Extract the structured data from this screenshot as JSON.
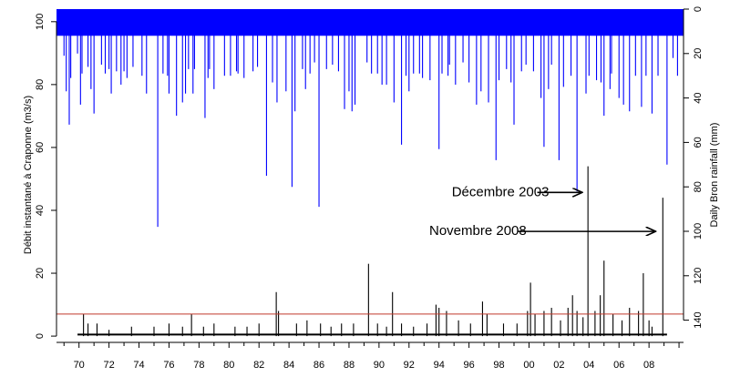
{
  "chart_data": {
    "type": "bar",
    "left_axis": {
      "label": "Débit instantané à Craponne (m3/s)",
      "range": [
        -2,
        104
      ],
      "ticks": [
        0,
        20,
        40,
        60,
        80,
        100
      ]
    },
    "right_axis": {
      "label": "Daily Bron rainfall (mm)",
      "range": [
        0,
        150
      ],
      "reversed": true,
      "ticks": [
        0,
        20,
        40,
        60,
        80,
        100,
        120,
        140
      ]
    },
    "x_axis": {
      "range": [
        1968.5,
        2010.3
      ],
      "tick_years": [
        1970,
        1972,
        1974,
        1976,
        1978,
        1980,
        1982,
        1984,
        1986,
        1988,
        1990,
        1992,
        1994,
        1996,
        1998,
        2000,
        2002,
        2004,
        2006,
        2008
      ],
      "tick_labels": [
        "70",
        "72",
        "74",
        "76",
        "78",
        "80",
        "82",
        "84",
        "86",
        "88",
        "90",
        "92",
        "94",
        "96",
        "98",
        "00",
        "02",
        "04",
        "06",
        "08"
      ]
    },
    "threshold": {
      "value": 7,
      "color": "#c0392b"
    },
    "series": [
      {
        "color": "#0000ff",
        "axis": "right",
        "values": [
          [
            1969.0,
            21
          ],
          [
            1969.15,
            37
          ],
          [
            1969.35,
            52
          ],
          [
            1969.45,
            31
          ],
          [
            1969.9,
            20
          ],
          [
            1970.1,
            43
          ],
          [
            1970.2,
            29
          ],
          [
            1970.6,
            26
          ],
          [
            1970.8,
            36
          ],
          [
            1971.0,
            47
          ],
          [
            1971.5,
            25
          ],
          [
            1971.75,
            29
          ],
          [
            1972.0,
            27
          ],
          [
            1972.15,
            38
          ],
          [
            1972.5,
            28
          ],
          [
            1972.8,
            34
          ],
          [
            1973.0,
            28
          ],
          [
            1973.2,
            31
          ],
          [
            1973.6,
            26
          ],
          [
            1974.2,
            30
          ],
          [
            1974.5,
            38
          ],
          [
            1975.25,
            98
          ],
          [
            1975.6,
            29
          ],
          [
            1975.9,
            30
          ],
          [
            1976.0,
            38
          ],
          [
            1976.5,
            48
          ],
          [
            1976.9,
            42
          ],
          [
            1977.1,
            38
          ],
          [
            1977.3,
            27
          ],
          [
            1977.6,
            38
          ],
          [
            1977.7,
            27
          ],
          [
            1978.4,
            49
          ],
          [
            1978.6,
            31
          ],
          [
            1978.7,
            27
          ],
          [
            1979.0,
            36
          ],
          [
            1979.7,
            30
          ],
          [
            1980.1,
            30
          ],
          [
            1980.5,
            28
          ],
          [
            1980.6,
            29
          ],
          [
            1981.0,
            31
          ],
          [
            1981.6,
            28
          ],
          [
            1981.9,
            26
          ],
          [
            1982.5,
            75
          ],
          [
            1982.9,
            33
          ],
          [
            1983.2,
            42
          ],
          [
            1983.8,
            37
          ],
          [
            1984.2,
            80
          ],
          [
            1984.4,
            46
          ],
          [
            1984.9,
            27
          ],
          [
            1985.1,
            36
          ],
          [
            1985.4,
            29
          ],
          [
            1985.7,
            24
          ],
          [
            1986.0,
            89
          ],
          [
            1986.5,
            27
          ],
          [
            1986.9,
            25
          ],
          [
            1987.3,
            28
          ],
          [
            1987.7,
            45
          ],
          [
            1988.0,
            37
          ],
          [
            1988.2,
            46
          ],
          [
            1988.4,
            43
          ],
          [
            1989.2,
            24
          ],
          [
            1989.5,
            29
          ],
          [
            1989.9,
            29
          ],
          [
            1990.2,
            34
          ],
          [
            1990.5,
            34
          ],
          [
            1991.0,
            42
          ],
          [
            1991.5,
            61
          ],
          [
            1991.8,
            30
          ],
          [
            1992.0,
            37
          ],
          [
            1992.3,
            29
          ],
          [
            1992.7,
            29
          ],
          [
            1992.9,
            31
          ],
          [
            1993.4,
            32
          ],
          [
            1994.0,
            63
          ],
          [
            1994.2,
            29
          ],
          [
            1994.6,
            30
          ],
          [
            1994.7,
            25
          ],
          [
            1995.1,
            34
          ],
          [
            1995.6,
            24
          ],
          [
            1996.0,
            33
          ],
          [
            1996.5,
            43
          ],
          [
            1996.8,
            37
          ],
          [
            1997.3,
            42
          ],
          [
            1997.8,
            68
          ],
          [
            1998.0,
            32
          ],
          [
            1998.5,
            27
          ],
          [
            1998.8,
            33
          ],
          [
            1999.0,
            52
          ],
          [
            1999.5,
            28
          ],
          [
            1999.8,
            25
          ],
          [
            2000.3,
            28
          ],
          [
            2000.8,
            40
          ],
          [
            2001.0,
            62
          ],
          [
            2001.3,
            36
          ],
          [
            2001.5,
            25
          ],
          [
            2002.0,
            68
          ],
          [
            2002.3,
            35
          ],
          [
            2002.8,
            30
          ],
          [
            2003.2,
            82
          ],
          [
            2003.8,
            38
          ],
          [
            2004.0,
            30
          ],
          [
            2004.5,
            32
          ],
          [
            2004.8,
            33
          ],
          [
            2005.0,
            48
          ],
          [
            2005.4,
            36
          ],
          [
            2005.5,
            29
          ],
          [
            2006.0,
            40
          ],
          [
            2006.3,
            43
          ],
          [
            2006.7,
            46
          ],
          [
            2007.1,
            30
          ],
          [
            2007.5,
            44
          ],
          [
            2007.8,
            30
          ],
          [
            2008.2,
            47
          ],
          [
            2008.6,
            30
          ],
          [
            2009.2,
            70
          ],
          [
            2009.6,
            22
          ],
          [
            2009.9,
            30
          ]
        ],
        "background_level": 12
      },
      {
        "color": "#000000",
        "axis": "left",
        "values": [
          [
            1970.3,
            7
          ],
          [
            1970.6,
            4
          ],
          [
            1971.2,
            4
          ],
          [
            1972.0,
            2
          ],
          [
            1973.5,
            3
          ],
          [
            1975.0,
            3
          ],
          [
            1976.0,
            4
          ],
          [
            1976.9,
            3
          ],
          [
            1977.5,
            7
          ],
          [
            1978.3,
            3
          ],
          [
            1979.0,
            4
          ],
          [
            1980.4,
            3
          ],
          [
            1981.2,
            3
          ],
          [
            1982.0,
            4
          ],
          [
            1983.15,
            14
          ],
          [
            1983.3,
            8
          ],
          [
            1984.5,
            4
          ],
          [
            1985.2,
            5
          ],
          [
            1986.1,
            4
          ],
          [
            1986.8,
            3
          ],
          [
            1987.5,
            4
          ],
          [
            1988.3,
            4
          ],
          [
            1989.3,
            23
          ],
          [
            1989.9,
            4
          ],
          [
            1990.5,
            3
          ],
          [
            1990.9,
            14
          ],
          [
            1991.5,
            4
          ],
          [
            1992.3,
            3
          ],
          [
            1993.2,
            4
          ],
          [
            1993.8,
            10
          ],
          [
            1994.0,
            9
          ],
          [
            1994.5,
            8
          ],
          [
            1995.3,
            5
          ],
          [
            1996.1,
            4
          ],
          [
            1996.9,
            11
          ],
          [
            1997.2,
            7
          ],
          [
            1998.3,
            4
          ],
          [
            1999.2,
            4
          ],
          [
            1999.9,
            8
          ],
          [
            2000.1,
            17
          ],
          [
            2000.4,
            7
          ],
          [
            2001.0,
            8
          ],
          [
            2001.5,
            9
          ],
          [
            2002.1,
            5
          ],
          [
            2002.6,
            9
          ],
          [
            2002.9,
            13
          ],
          [
            2003.2,
            8
          ],
          [
            2003.6,
            6
          ],
          [
            2003.93,
            54
          ],
          [
            2004.4,
            8
          ],
          [
            2004.75,
            13
          ],
          [
            2005.0,
            24
          ],
          [
            2005.6,
            7
          ],
          [
            2006.2,
            5
          ],
          [
            2006.7,
            9
          ],
          [
            2007.3,
            8
          ],
          [
            2007.62,
            20
          ],
          [
            2008.0,
            5
          ],
          [
            2008.2,
            3
          ],
          [
            2008.92,
            44
          ]
        ]
      }
    ],
    "annotations": [
      {
        "text": "Décembre 2003",
        "text_x": 1994.85,
        "text_y": 45.7,
        "arrow_from": [
          2000.55,
          45.7
        ],
        "arrow_to": [
          2003.55,
          45.7
        ]
      },
      {
        "text": "Novembre 2008",
        "text_x": 1993.35,
        "text_y": 33.3,
        "arrow_from": [
          1999.25,
          33.3
        ],
        "arrow_to": [
          2008.45,
          33.3
        ]
      }
    ]
  }
}
